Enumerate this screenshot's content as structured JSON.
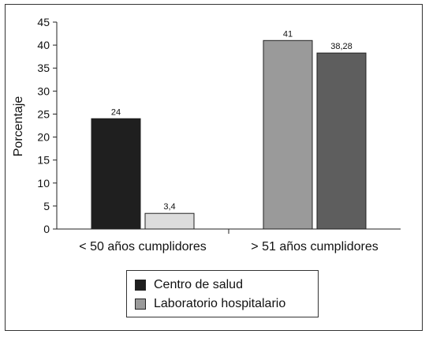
{
  "chart_data": {
    "type": "bar",
    "title": "",
    "xlabel": "",
    "ylabel": "Porcentaje",
    "ylim": [
      0,
      45
    ],
    "yticks": [
      0,
      5,
      10,
      15,
      20,
      25,
      30,
      35,
      40,
      45
    ],
    "grid": false,
    "legend_position": "bottom-center",
    "categories": [
      "< 50 años cumplidores",
      "> 51 años cumplidores"
    ],
    "bars": [
      {
        "category_index": 0,
        "value": 24,
        "label": "24",
        "color": "#1f1f1f"
      },
      {
        "category_index": 0,
        "value": 3.4,
        "label": "3,4",
        "color": "#dcdcdc"
      },
      {
        "category_index": 1,
        "value": 41,
        "label": "41",
        "color": "#9a9a9a"
      },
      {
        "category_index": 1,
        "value": 38.28,
        "label": "38,28",
        "color": "#5e5e5e"
      }
    ],
    "legend": [
      {
        "name": "Centro de salud",
        "color": "#1f1f1f"
      },
      {
        "name": "Laboratorio hospitalario",
        "color": "#9a9a9a"
      }
    ]
  }
}
